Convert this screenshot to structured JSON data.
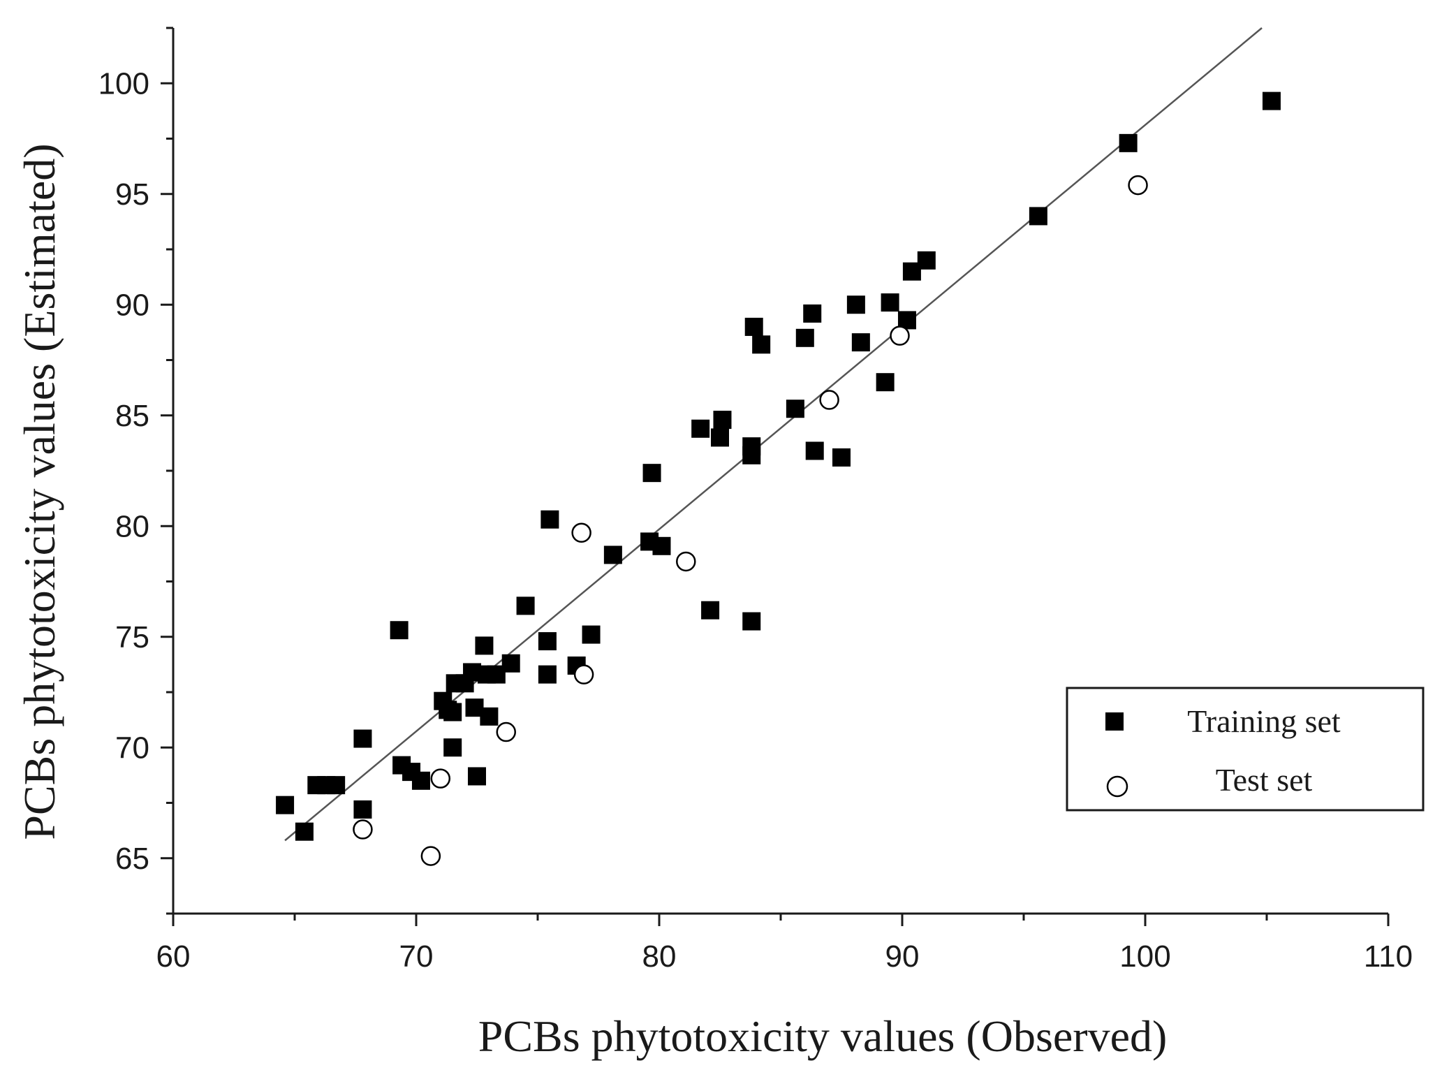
{
  "chart_data": {
    "type": "scatter",
    "xlabel": "PCBs phytotoxicity values (Observed)",
    "ylabel": "PCBs phytotoxicity values (Estimated)",
    "xlim": [
      60,
      110
    ],
    "ylim": [
      62.5,
      102.5
    ],
    "xticks": [
      60,
      70,
      80,
      90,
      100,
      110
    ],
    "yticks": [
      65,
      70,
      75,
      80,
      85,
      90,
      95,
      100
    ],
    "legend_position": "bottom-right",
    "fit_line": {
      "x": [
        64.6,
        104.8
      ],
      "y": [
        65.8,
        102.5
      ]
    },
    "series": [
      {
        "name": "Training set",
        "marker": "filled-square",
        "color": "#000000",
        "points": [
          [
            64.6,
            67.4
          ],
          [
            65.4,
            66.2
          ],
          [
            65.9,
            68.3
          ],
          [
            66.3,
            68.3
          ],
          [
            66.7,
            68.3
          ],
          [
            67.8,
            70.4
          ],
          [
            67.8,
            67.2
          ],
          [
            69.3,
            75.3
          ],
          [
            69.4,
            69.2
          ],
          [
            69.8,
            68.9
          ],
          [
            70.2,
            68.5
          ],
          [
            71.1,
            72.1
          ],
          [
            71.3,
            71.7
          ],
          [
            71.5,
            70.0
          ],
          [
            71.5,
            71.6
          ],
          [
            71.6,
            72.9
          ],
          [
            72.0,
            72.9
          ],
          [
            72.3,
            73.4
          ],
          [
            72.4,
            71.8
          ],
          [
            72.5,
            68.7
          ],
          [
            72.8,
            74.6
          ],
          [
            72.9,
            73.3
          ],
          [
            73.0,
            71.4
          ],
          [
            73.3,
            73.3
          ],
          [
            73.9,
            73.8
          ],
          [
            74.5,
            76.4
          ],
          [
            75.4,
            74.8
          ],
          [
            75.4,
            73.3
          ],
          [
            75.5,
            80.3
          ],
          [
            76.6,
            73.7
          ],
          [
            77.2,
            75.1
          ],
          [
            78.1,
            78.7
          ],
          [
            79.6,
            79.3
          ],
          [
            79.7,
            82.4
          ],
          [
            80.1,
            79.1
          ],
          [
            81.7,
            84.4
          ],
          [
            82.1,
            76.2
          ],
          [
            82.5,
            84.0
          ],
          [
            82.6,
            84.8
          ],
          [
            83.8,
            83.6
          ],
          [
            83.8,
            83.2
          ],
          [
            83.8,
            75.7
          ],
          [
            83.9,
            89.0
          ],
          [
            84.2,
            88.2
          ],
          [
            85.6,
            85.3
          ],
          [
            86.0,
            88.5
          ],
          [
            86.3,
            89.6
          ],
          [
            86.4,
            83.4
          ],
          [
            87.5,
            83.1
          ],
          [
            88.1,
            90.0
          ],
          [
            88.3,
            88.3
          ],
          [
            89.3,
            86.5
          ],
          [
            89.5,
            90.1
          ],
          [
            90.2,
            89.3
          ],
          [
            90.4,
            91.5
          ],
          [
            91.0,
            92.0
          ],
          [
            95.6,
            94.0
          ],
          [
            99.3,
            97.3
          ],
          [
            105.2,
            99.2
          ]
        ]
      },
      {
        "name": "Test set",
        "marker": "open-circle",
        "color": "#000000",
        "points": [
          [
            67.8,
            66.3
          ],
          [
            70.6,
            65.1
          ],
          [
            71.0,
            68.6
          ],
          [
            73.7,
            70.7
          ],
          [
            76.8,
            79.7
          ],
          [
            76.9,
            73.3
          ],
          [
            81.1,
            78.4
          ],
          [
            87.0,
            85.7
          ],
          [
            89.9,
            88.6
          ],
          [
            99.7,
            95.4
          ]
        ]
      }
    ]
  }
}
